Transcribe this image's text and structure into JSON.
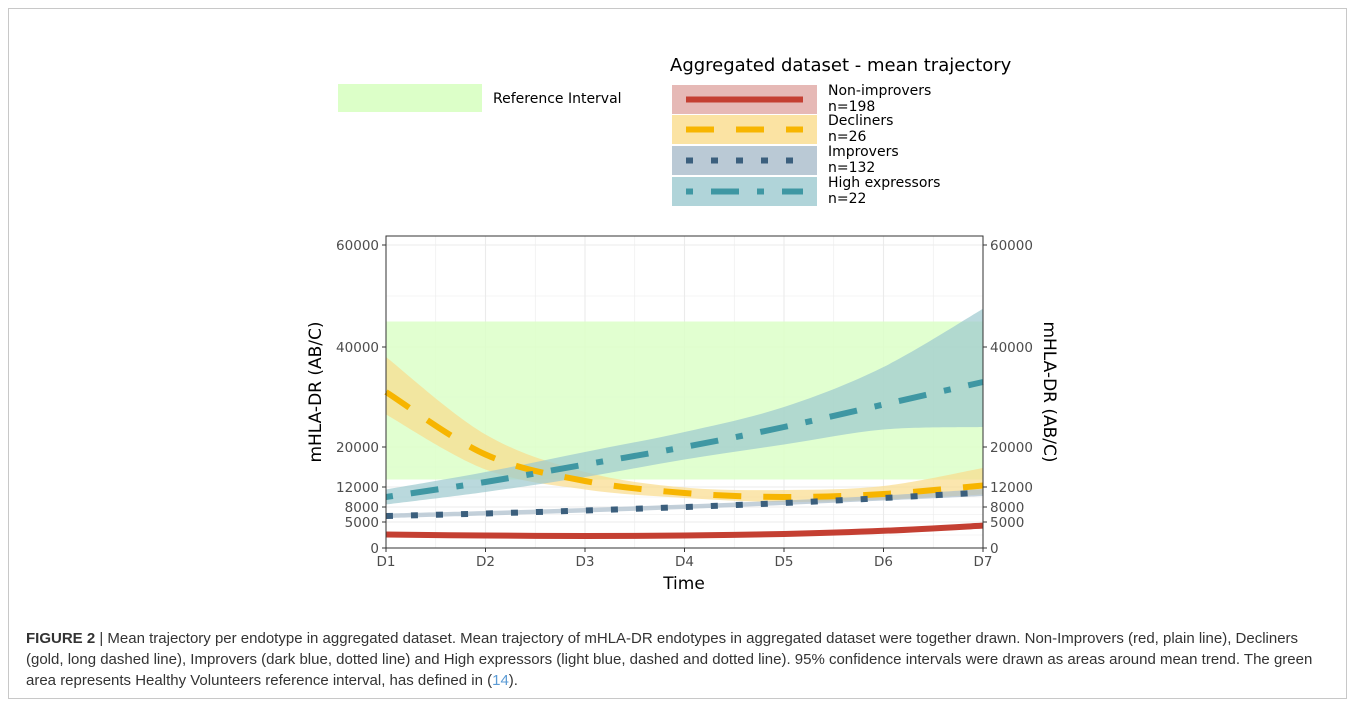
{
  "chart_data": {
    "type": "line",
    "xlabel": "Time",
    "ylabel": "mHLA-DR (AB/C)",
    "ylabel_right": "mHLA-DR (AB/C)",
    "x": [
      "D1",
      "D2",
      "D3",
      "D4",
      "D5",
      "D6",
      "D7"
    ],
    "ylim": [
      0,
      60000
    ],
    "y_ticks": [
      0,
      5000,
      8000,
      12000,
      20000,
      40000,
      60000
    ],
    "y_tick_labels": [
      "0",
      "5000",
      "8000",
      "12000",
      "20000",
      "40000",
      "60000"
    ],
    "y_scale": "piecewise-linear (0–12000 compressed, 12000–60000 expanded)",
    "grid": true,
    "reference_interval": {
      "label": "Reference Interval",
      "lower": 13500,
      "upper": 45000,
      "color": "#dcffc8"
    },
    "legend_title": "Aggregated dataset - mean trajectory",
    "series": [
      {
        "name": "Non-improvers",
        "n_label": "n=198",
        "color": "#c43f32",
        "band_color": "#e0a8a4",
        "linestyle": "solid",
        "values": [
          2600,
          2400,
          2300,
          2400,
          2700,
          3300,
          4300
        ],
        "ci_lower": [
          2300,
          2150,
          2050,
          2150,
          2450,
          3000,
          3900
        ],
        "ci_upper": [
          2900,
          2650,
          2550,
          2650,
          2950,
          3600,
          4700
        ]
      },
      {
        "name": "Decliners",
        "n_label": "n=26",
        "color": "#f7b500",
        "band_color": "#fadc8c",
        "linestyle": "long-dash",
        "values": [
          31000,
          18500,
          13200,
          10800,
          10000,
          10600,
          12300
        ],
        "ci_lower": [
          26500,
          15500,
          11500,
          9800,
          9000,
          9500,
          10500
        ],
        "ci_upper": [
          38000,
          22500,
          15000,
          11900,
          11400,
          12200,
          15800
        ]
      },
      {
        "name": "Improvers",
        "n_label": "n=132",
        "color": "#3b5f7d",
        "band_color": "#a9bccb",
        "linestyle": "dotted",
        "values": [
          6200,
          6700,
          7300,
          8000,
          8800,
          9800,
          10900
        ],
        "ci_lower": [
          5800,
          6300,
          6900,
          7600,
          8400,
          9300,
          10200
        ],
        "ci_upper": [
          6700,
          7200,
          7800,
          8500,
          9300,
          10300,
          11600
        ]
      },
      {
        "name": "High expressors",
        "n_label": "n=22",
        "color": "#3f97a3",
        "band_color": "#9cc9cf",
        "linestyle": "dash-dot",
        "values": [
          10000,
          13000,
          16500,
          20000,
          24000,
          28500,
          33000
        ],
        "ci_lower": [
          8500,
          11000,
          14000,
          17500,
          20500,
          23500,
          24000
        ],
        "ci_upper": [
          11500,
          15000,
          19000,
          23000,
          28000,
          36000,
          47500
        ]
      }
    ]
  },
  "caption": {
    "label": "FIGURE 2",
    "text": "| Mean trajectory per endotype in aggregated dataset. Mean trajectory of mHLA-DR endotypes in aggregated dataset were together drawn. Non-Improvers (red, plain line), Decliners (gold, long dashed line), Improvers (dark blue, dotted line) and High expressors (light blue, dashed and dotted line). 95% confidence intervals were drawn as areas around mean trend. The green area represents Healthy Volunteers reference interval, has defined in (",
    "ref": "14",
    "end": ")."
  }
}
